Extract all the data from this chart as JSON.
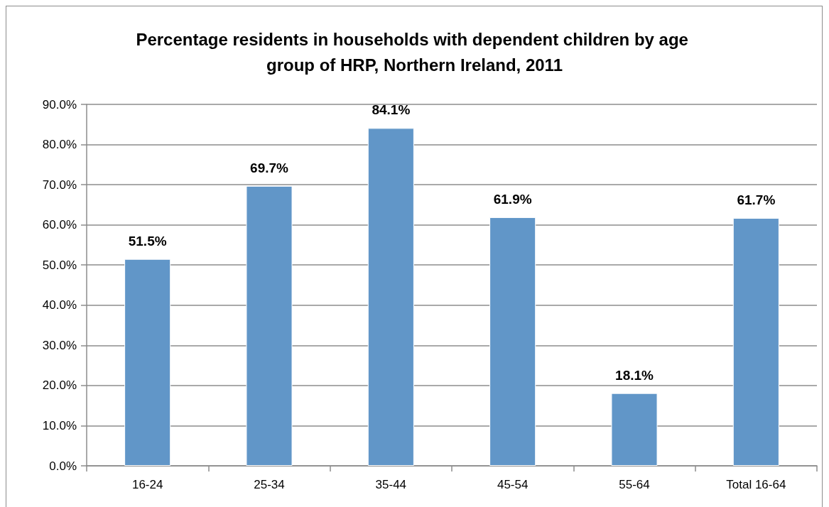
{
  "chart_data": {
    "type": "bar",
    "title": "Percentage residents in households with dependent children by age group of HRP, Northern Ireland, 2011",
    "categories": [
      "16-24",
      "25-34",
      "35-44",
      "45-54",
      "55-64",
      "Total 16-64"
    ],
    "values": [
      51.5,
      69.7,
      84.1,
      61.9,
      18.1,
      61.7
    ],
    "value_labels": [
      "51.5%",
      "69.7%",
      "84.1%",
      "61.9%",
      "18.1%",
      "61.7%"
    ],
    "color": "#6196c8",
    "ylim": [
      0,
      90
    ],
    "yticks": [
      {
        "value": 0,
        "label": "0.0%"
      },
      {
        "value": 10,
        "label": "10.0%"
      },
      {
        "value": 20,
        "label": "20.0%"
      },
      {
        "value": 30,
        "label": "30.0%"
      },
      {
        "value": 40,
        "label": "40.0%"
      },
      {
        "value": 50,
        "label": "50.0%"
      },
      {
        "value": 60,
        "label": "60.0%"
      },
      {
        "value": 70,
        "label": "70.0%"
      },
      {
        "value": 80,
        "label": "80.0%"
      },
      {
        "value": 90,
        "label": "90.0%"
      }
    ],
    "grid": "y"
  }
}
